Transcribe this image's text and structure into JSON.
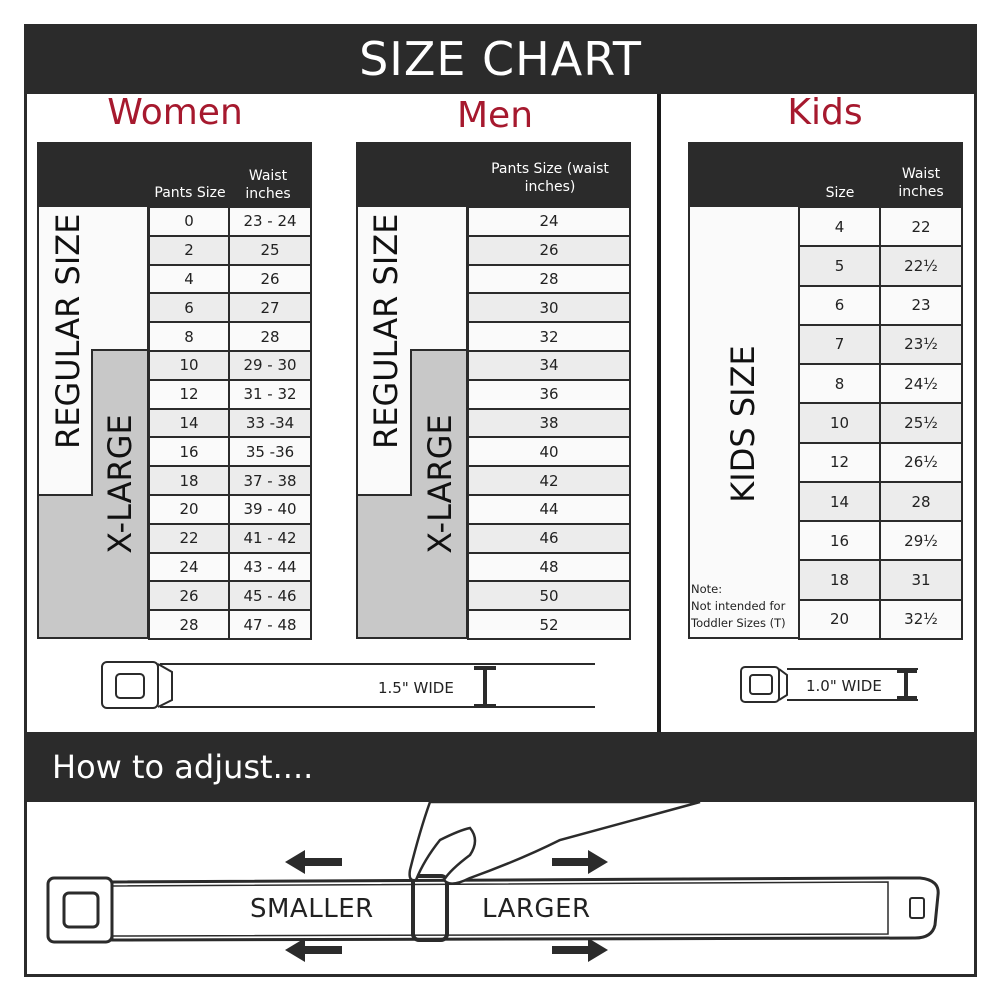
{
  "title": "SIZE CHART",
  "women": {
    "heading": "Women",
    "col1": "Pants Size",
    "col2": "Waist inches",
    "regular_label": "REGULAR SIZE",
    "xl_label": "X-LARGE",
    "rows": [
      [
        "0",
        "23 - 24"
      ],
      [
        "2",
        "25"
      ],
      [
        "4",
        "26"
      ],
      [
        "6",
        "27"
      ],
      [
        "8",
        "28"
      ],
      [
        "10",
        "29 - 30"
      ],
      [
        "12",
        "31 - 32"
      ],
      [
        "14",
        "33 -34"
      ],
      [
        "16",
        "35 -36"
      ],
      [
        "18",
        "37 - 38"
      ],
      [
        "20",
        "39 - 40"
      ],
      [
        "22",
        "41 - 42"
      ],
      [
        "24",
        "43 - 44"
      ],
      [
        "26",
        "45 - 46"
      ],
      [
        "28",
        "47 - 48"
      ]
    ]
  },
  "men": {
    "heading": "Men",
    "col1": "Pants Size (waist inches)",
    "regular_label": "REGULAR SIZE",
    "xl_label": "X-LARGE",
    "rows": [
      "24",
      "26",
      "28",
      "30",
      "32",
      "34",
      "36",
      "38",
      "40",
      "42",
      "44",
      "46",
      "48",
      "50",
      "52"
    ]
  },
  "kids": {
    "heading": "Kids",
    "col1": "Size",
    "col2": "Waist inches",
    "label": "KIDS SIZE",
    "note_title": "Note:",
    "note_line1": "Not intended for",
    "note_line2": "Toddler Sizes (T)",
    "rows": [
      [
        "4",
        "22"
      ],
      [
        "5",
        "22½"
      ],
      [
        "6",
        "23"
      ],
      [
        "7",
        "23½"
      ],
      [
        "8",
        "24½"
      ],
      [
        "10",
        "25½"
      ],
      [
        "12",
        "26½"
      ],
      [
        "14",
        "28"
      ],
      [
        "16",
        "29½"
      ],
      [
        "18",
        "31"
      ],
      [
        "20",
        "32½"
      ]
    ]
  },
  "belt_adult_width": "1.5\" WIDE",
  "belt_kids_width": "1.0\" WIDE",
  "adjust": {
    "heading": "How to adjust....",
    "smaller": "SMALLER",
    "larger": "LARGER"
  },
  "colors": {
    "dark": "#2b2b2b",
    "accent": "#a6192e",
    "xl_gray": "#c8c8c8"
  }
}
